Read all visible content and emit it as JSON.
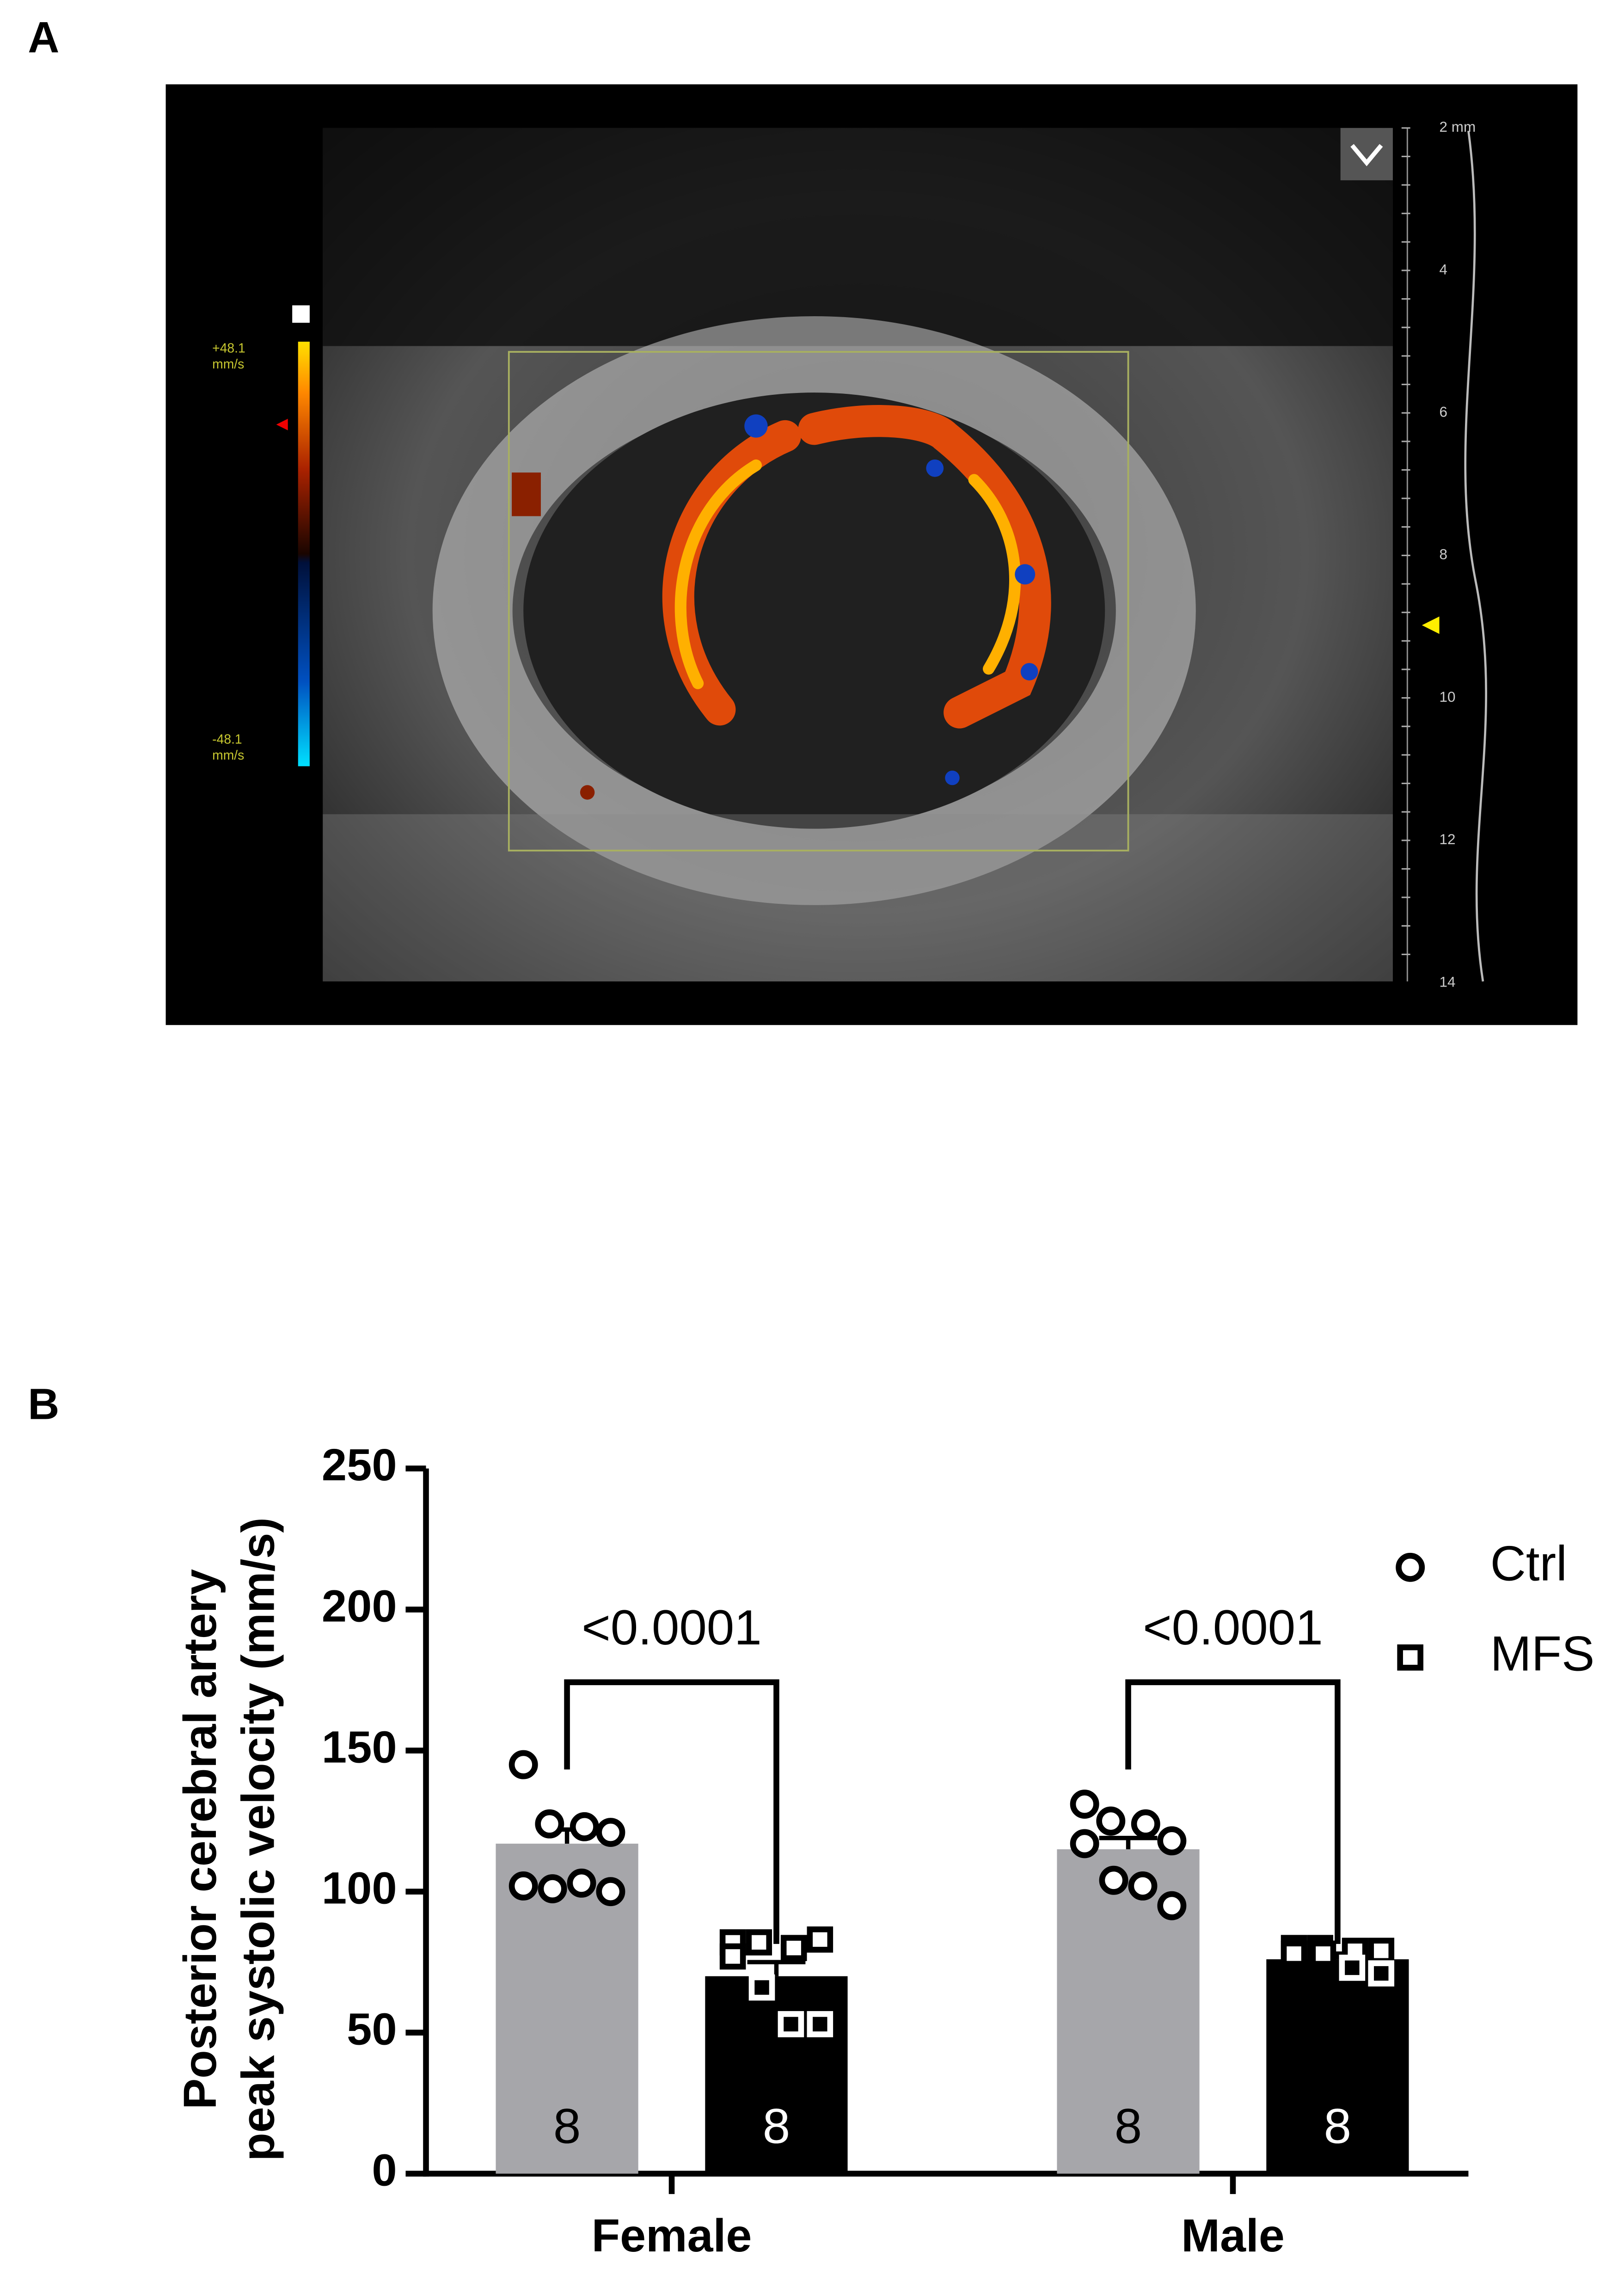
{
  "panel_a": {
    "label": "A",
    "depth_labels": [
      "2 mm",
      "4",
      "6",
      "8",
      "10",
      "12",
      "14"
    ],
    "velocity_max": [
      "+48.1",
      "mm/s"
    ],
    "velocity_min": [
      "-48.1",
      "mm/s"
    ]
  },
  "panel_b": {
    "label": "B"
  },
  "chart_data": {
    "type": "bar",
    "y_label": [
      "Posterior cerebral artery",
      "peak systolic velocity (mm/s)"
    ],
    "categories": [
      "Female",
      "Male"
    ],
    "series": [
      {
        "name": "Ctrl",
        "color": "#a6a6aa",
        "marker": "circle",
        "values": [
          117,
          115
        ],
        "errors": [
          5,
          4
        ],
        "n": [
          8,
          8
        ],
        "points": [
          [
            145,
            124,
            123,
            121,
            102,
            101,
            103,
            100
          ],
          [
            131,
            125,
            124,
            118,
            117,
            104,
            102,
            95
          ]
        ]
      },
      {
        "name": "MFS",
        "color": "#000000",
        "marker": "square",
        "values": [
          70,
          76
        ],
        "errors": [
          5,
          2
        ],
        "n": [
          8,
          8
        ],
        "points": [
          [
            82,
            82,
            80,
            83,
            77,
            66,
            53,
            53
          ],
          [
            80,
            80,
            79,
            79,
            78,
            78,
            73,
            71
          ]
        ]
      }
    ],
    "comparisons": [
      "<0.0001",
      "<0.0001"
    ],
    "ylim": [
      0,
      250
    ],
    "yticks": [
      0,
      50,
      100,
      150,
      200,
      250
    ],
    "legend": "top-right"
  }
}
